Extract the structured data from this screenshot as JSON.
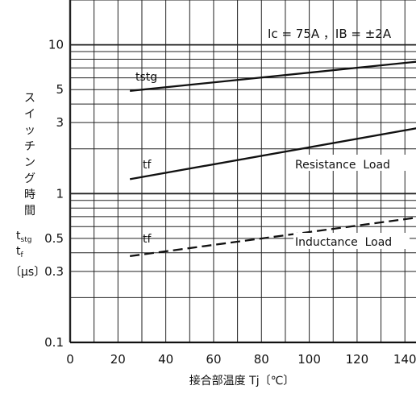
{
  "chart_data": {
    "type": "line",
    "xlabel": "接合部温度 Tj〔℃〕",
    "ylabel_chars": [
      "ス",
      "イ",
      "ッ",
      "チ",
      "ン",
      "グ",
      "時",
      "間"
    ],
    "ylabel_sub1": "t",
    "ylabel_sub1_subscript": "stg",
    "ylabel_sub2": "t",
    "ylabel_sub2_subscript": "f",
    "ylabel_unit": "〔μs〕",
    "xlim": [
      0,
      145
    ],
    "ylim": [
      0.1,
      20
    ],
    "y_scale": "log",
    "x_ticks": [
      0,
      20,
      40,
      60,
      80,
      100,
      120,
      140
    ],
    "x_tick_labels": [
      "0",
      "20",
      "40",
      "60",
      "80",
      "100",
      "120",
      "140"
    ],
    "y_ticks": [
      0.1,
      0.3,
      0.5,
      1,
      3,
      5,
      10
    ],
    "y_tick_labels": [
      "0.1",
      "0.3",
      "0.5",
      "1",
      "3",
      "5",
      "10"
    ],
    "grid": true,
    "conditions_text": "Ic = 75A ，IB = ±2A",
    "series": [
      {
        "name": "tstg",
        "label": "tstg",
        "style": "solid",
        "x": [
          25,
          145
        ],
        "y": [
          4.9,
          7.7
        ]
      },
      {
        "name": "tf (Resistance Load)",
        "label": "tf",
        "style": "solid",
        "x": [
          25,
          145
        ],
        "y": [
          1.25,
          2.75
        ]
      },
      {
        "name": "tf (Inductance Load)",
        "label": "tf",
        "style": "dashed",
        "x": [
          25,
          145
        ],
        "y": [
          0.38,
          0.69
        ]
      }
    ],
    "annotations": {
      "resistance": "Resistance  Load",
      "inductance": "Inductance  Load"
    }
  }
}
